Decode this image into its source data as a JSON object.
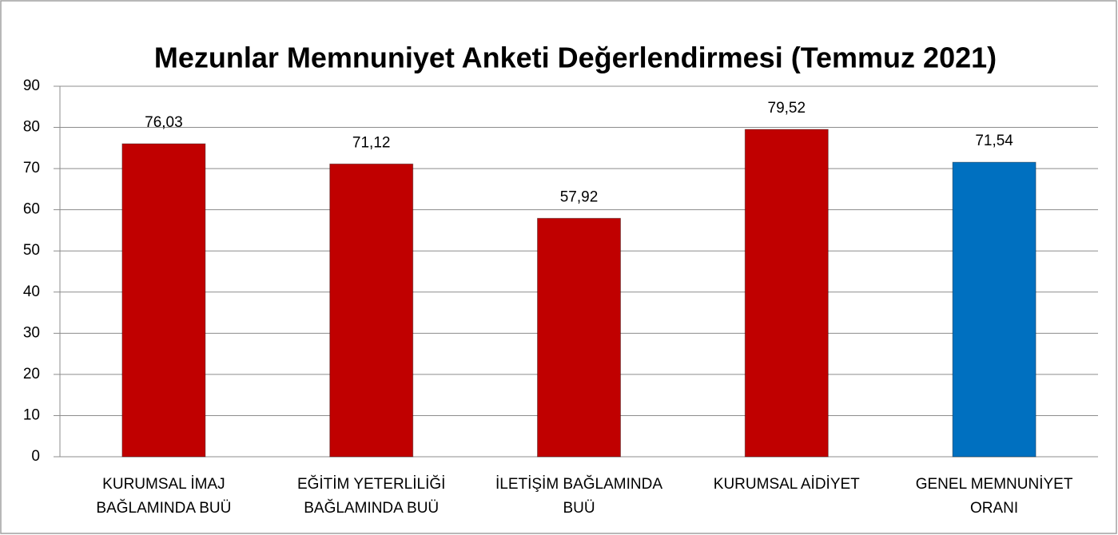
{
  "chart_data": {
    "type": "bar",
    "title": "Mezunlar Memnuniyet Anketi Değerlendirmesi (Temmuz 2021)",
    "categories": [
      "KURUMSAL İMAJ BAĞLAMINDA BUÜ",
      "EĞİTİM YETERLİLİĞİ BAĞLAMINDA BUÜ",
      "İLETİŞİM BAĞLAMINDA BUÜ",
      "KURUMSAL AİDİYET",
      "GENEL MEMNUNİYET ORANI"
    ],
    "values": [
      76.03,
      71.12,
      57.92,
      79.52,
      71.54
    ],
    "value_labels": [
      "76,03",
      "71,12",
      "57,92",
      "79,52",
      "71,54"
    ],
    "colors": [
      "#c00000",
      "#c00000",
      "#c00000",
      "#c00000",
      "#0070c0"
    ],
    "ylim": [
      0,
      90
    ],
    "yticks": [
      0,
      10,
      20,
      30,
      40,
      50,
      60,
      70,
      80,
      90
    ],
    "grid": true
  }
}
